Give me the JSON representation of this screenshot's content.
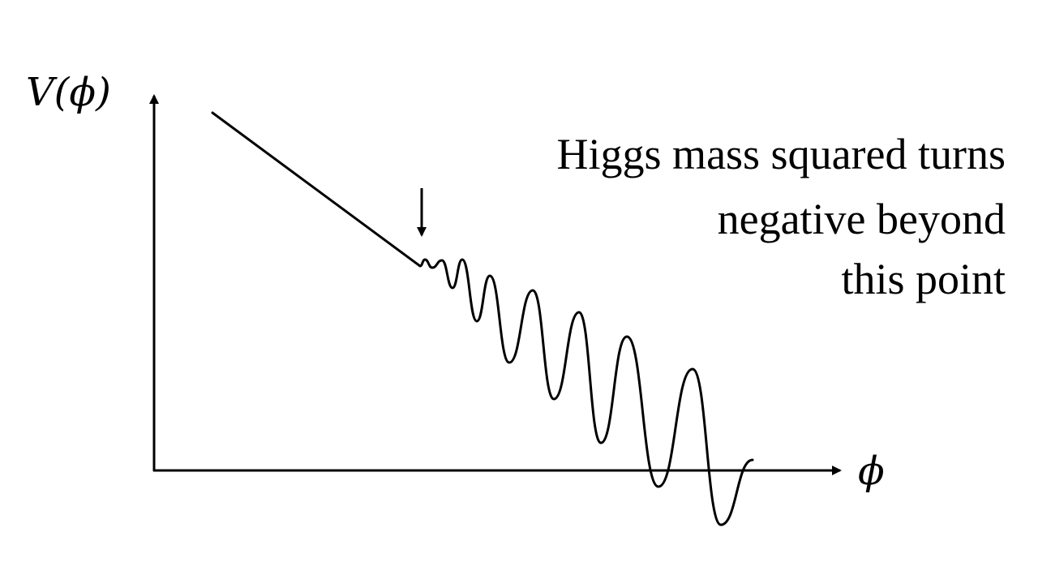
{
  "diagram": {
    "y_axis_label": "V(ϕ)",
    "x_axis_label": "ϕ",
    "annotation_lines": [
      "Higgs mass squared turns",
      "negative beyond",
      "this point"
    ],
    "line_color": "#000000",
    "background_color": "#ffffff"
  }
}
